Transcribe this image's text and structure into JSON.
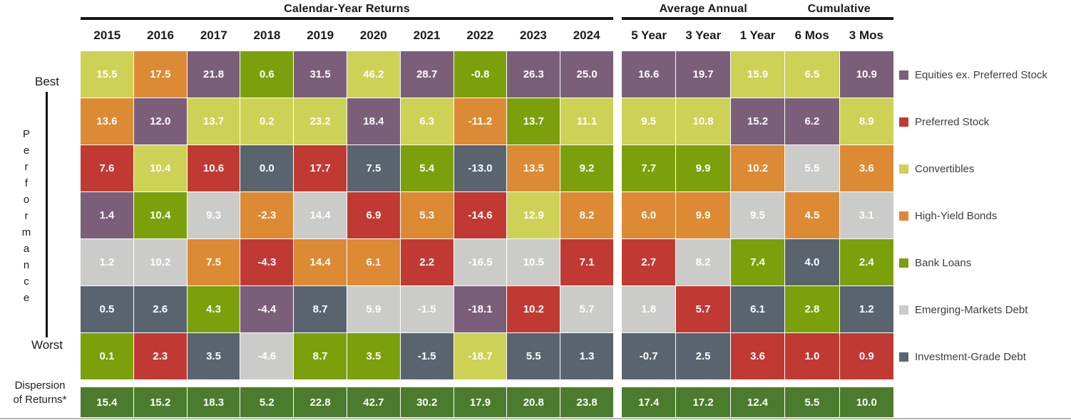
{
  "titles": {
    "calendar": "Calendar-Year Returns",
    "average_annual": "Average Annual",
    "cumulative": "Cumulative"
  },
  "left_rail": {
    "best": "Best",
    "performance": "Performance",
    "worst": "Worst",
    "dispersion_line1": "Dispersion",
    "dispersion_line2": "of Returns*"
  },
  "legend": [
    {
      "id": "EQ",
      "label": "Equities ex. Preferred Stock",
      "color": "#7b5e79"
    },
    {
      "id": "PS",
      "label": "Preferred Stock",
      "color": "#c03a33"
    },
    {
      "id": "CV",
      "label": "Convertibles",
      "color": "#cdd155"
    },
    {
      "id": "HY",
      "label": "High-Yield Bonds",
      "color": "#dd8a35"
    },
    {
      "id": "BL",
      "label": "Bank Loans",
      "color": "#7ba00b"
    },
    {
      "id": "EM",
      "label": "Emerging-Markets Debt",
      "color": "#cbcbca"
    },
    {
      "id": "IG",
      "label": "Investment-Grade Debt",
      "color": "#5a646f"
    }
  ],
  "chart_data": {
    "type": "heatmap",
    "description": "Asset-class total returns (%) ranked Best to Worst per period; cell color = asset class per legend",
    "calendar_columns": [
      "2015",
      "2016",
      "2017",
      "2018",
      "2019",
      "2020",
      "2021",
      "2022",
      "2023",
      "2024"
    ],
    "period_columns": [
      "5 Year",
      "3 Year",
      "1 Year",
      "6 Mos",
      "3 Mos"
    ],
    "rank_axis": {
      "top": "Best",
      "bottom": "Worst"
    },
    "rows": [
      {
        "calendar": [
          {
            "v": "15.5",
            "a": "CV"
          },
          {
            "v": "17.5",
            "a": "HY"
          },
          {
            "v": "21.8",
            "a": "EQ"
          },
          {
            "v": "0.6",
            "a": "BL"
          },
          {
            "v": "31.5",
            "a": "EQ"
          },
          {
            "v": "46.2",
            "a": "CV"
          },
          {
            "v": "28.7",
            "a": "EQ"
          },
          {
            "v": "-0.8",
            "a": "BL"
          },
          {
            "v": "26.3",
            "a": "EQ"
          },
          {
            "v": "25.0",
            "a": "EQ"
          }
        ],
        "periods": [
          {
            "v": "16.6",
            "a": "EQ"
          },
          {
            "v": "19.7",
            "a": "EQ"
          },
          {
            "v": "15.9",
            "a": "CV"
          },
          {
            "v": "6.5",
            "a": "CV"
          },
          {
            "v": "10.9",
            "a": "EQ"
          }
        ]
      },
      {
        "calendar": [
          {
            "v": "13.6",
            "a": "HY"
          },
          {
            "v": "12.0",
            "a": "EQ"
          },
          {
            "v": "13.7",
            "a": "CV"
          },
          {
            "v": "0.2",
            "a": "CV"
          },
          {
            "v": "23.2",
            "a": "CV"
          },
          {
            "v": "18.4",
            "a": "EQ"
          },
          {
            "v": "6.3",
            "a": "CV"
          },
          {
            "v": "-11.2",
            "a": "HY"
          },
          {
            "v": "13.7",
            "a": "BL"
          },
          {
            "v": "11.1",
            "a": "CV"
          }
        ],
        "periods": [
          {
            "v": "9.5",
            "a": "CV"
          },
          {
            "v": "10.8",
            "a": "CV"
          },
          {
            "v": "15.2",
            "a": "EQ"
          },
          {
            "v": "6.2",
            "a": "EQ"
          },
          {
            "v": "8.9",
            "a": "CV"
          }
        ]
      },
      {
        "calendar": [
          {
            "v": "7.6",
            "a": "PS"
          },
          {
            "v": "10.4",
            "a": "CV"
          },
          {
            "v": "10.6",
            "a": "PS"
          },
          {
            "v": "0.0",
            "a": "IG"
          },
          {
            "v": "17.7",
            "a": "PS"
          },
          {
            "v": "7.5",
            "a": "IG"
          },
          {
            "v": "5.4",
            "a": "BL"
          },
          {
            "v": "-13.0",
            "a": "IG"
          },
          {
            "v": "13.5",
            "a": "HY"
          },
          {
            "v": "9.2",
            "a": "BL"
          }
        ],
        "periods": [
          {
            "v": "7.7",
            "a": "BL"
          },
          {
            "v": "9.9",
            "a": "BL"
          },
          {
            "v": "10.2",
            "a": "HY"
          },
          {
            "v": "5.5",
            "a": "EM"
          },
          {
            "v": "3.6",
            "a": "HY"
          }
        ]
      },
      {
        "calendar": [
          {
            "v": "1.4",
            "a": "EQ"
          },
          {
            "v": "10.4",
            "a": "BL"
          },
          {
            "v": "9.3",
            "a": "EM"
          },
          {
            "v": "-2.3",
            "a": "HY"
          },
          {
            "v": "14.4",
            "a": "EM"
          },
          {
            "v": "6.9",
            "a": "PS"
          },
          {
            "v": "5.3",
            "a": "HY"
          },
          {
            "v": "-14.6",
            "a": "PS"
          },
          {
            "v": "12.9",
            "a": "CV"
          },
          {
            "v": "8.2",
            "a": "HY"
          }
        ],
        "periods": [
          {
            "v": "6.0",
            "a": "HY"
          },
          {
            "v": "9.9",
            "a": "HY"
          },
          {
            "v": "9.5",
            "a": "EM"
          },
          {
            "v": "4.5",
            "a": "HY"
          },
          {
            "v": "3.1",
            "a": "EM"
          }
        ]
      },
      {
        "calendar": [
          {
            "v": "1.2",
            "a": "EM"
          },
          {
            "v": "10.2",
            "a": "EM"
          },
          {
            "v": "7.5",
            "a": "HY"
          },
          {
            "v": "-4.3",
            "a": "PS"
          },
          {
            "v": "14.4",
            "a": "HY"
          },
          {
            "v": "6.1",
            "a": "HY"
          },
          {
            "v": "2.2",
            "a": "PS"
          },
          {
            "v": "-16.5",
            "a": "EM"
          },
          {
            "v": "10.5",
            "a": "EM"
          },
          {
            "v": "7.1",
            "a": "PS"
          }
        ],
        "periods": [
          {
            "v": "2.7",
            "a": "PS"
          },
          {
            "v": "8.2",
            "a": "EM"
          },
          {
            "v": "7.4",
            "a": "BL"
          },
          {
            "v": "4.0",
            "a": "IG"
          },
          {
            "v": "2.4",
            "a": "BL"
          }
        ]
      },
      {
        "calendar": [
          {
            "v": "0.5",
            "a": "IG"
          },
          {
            "v": "2.6",
            "a": "IG"
          },
          {
            "v": "4.3",
            "a": "BL"
          },
          {
            "v": "-4.4",
            "a": "EQ"
          },
          {
            "v": "8.7",
            "a": "IG"
          },
          {
            "v": "5.9",
            "a": "EM"
          },
          {
            "v": "-1.5",
            "a": "EM"
          },
          {
            "v": "-18.1",
            "a": "EQ"
          },
          {
            "v": "10.2",
            "a": "PS"
          },
          {
            "v": "5.7",
            "a": "EM"
          }
        ],
        "periods": [
          {
            "v": "1.8",
            "a": "EM"
          },
          {
            "v": "5.7",
            "a": "PS"
          },
          {
            "v": "6.1",
            "a": "IG"
          },
          {
            "v": "2.8",
            "a": "BL"
          },
          {
            "v": "1.2",
            "a": "IG"
          }
        ]
      },
      {
        "calendar": [
          {
            "v": "0.1",
            "a": "BL"
          },
          {
            "v": "2.3",
            "a": "PS"
          },
          {
            "v": "3.5",
            "a": "IG"
          },
          {
            "v": "-4.6",
            "a": "EM"
          },
          {
            "v": "8.7",
            "a": "BL"
          },
          {
            "v": "3.5",
            "a": "BL"
          },
          {
            "v": "-1.5",
            "a": "IG"
          },
          {
            "v": "-18.7",
            "a": "CV"
          },
          {
            "v": "5.5",
            "a": "IG"
          },
          {
            "v": "1.3",
            "a": "IG"
          }
        ],
        "periods": [
          {
            "v": "-0.7",
            "a": "IG"
          },
          {
            "v": "2.5",
            "a": "IG"
          },
          {
            "v": "3.6",
            "a": "PS"
          },
          {
            "v": "1.0",
            "a": "PS"
          },
          {
            "v": "0.9",
            "a": "PS"
          }
        ]
      }
    ],
    "dispersion": {
      "color": "#4b7b2d",
      "calendar": [
        "15.4",
        "15.2",
        "18.3",
        "5.2",
        "22.8",
        "42.7",
        "30.2",
        "17.9",
        "20.8",
        "23.8"
      ],
      "periods": [
        "17.4",
        "17.2",
        "12.4",
        "5.5",
        "10.0"
      ]
    }
  }
}
